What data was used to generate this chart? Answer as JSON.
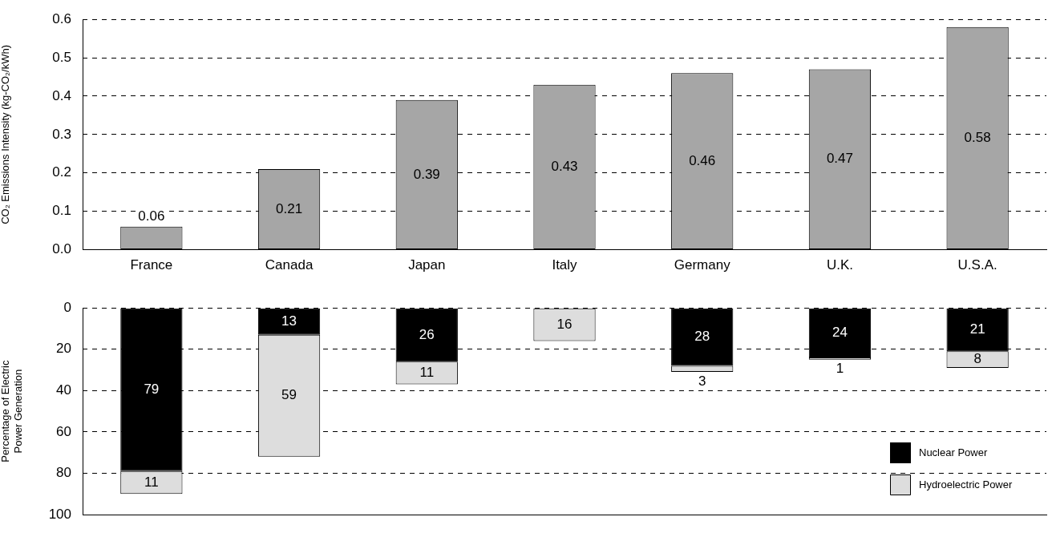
{
  "chart_data": [
    {
      "type": "bar",
      "ylabel": "CO₂ Emissions Intensity (kg-CO₂/kWh)",
      "categories": [
        "France",
        "Canada",
        "Japan",
        "Italy",
        "Germany",
        "U.K.",
        "U.S.A."
      ],
      "series": [
        {
          "color": "#a6a6a6",
          "values": [
            0.06,
            0.21,
            0.39,
            0.43,
            0.46,
            0.47,
            0.58
          ]
        }
      ],
      "ylim": [
        0,
        0.6
      ],
      "yticks": [
        {
          "value": 0,
          "label": "0.0"
        },
        0.1,
        0.2,
        0.3,
        0.4,
        0.5,
        0.6
      ],
      "grid": "y",
      "data_labels": true,
      "legend": false
    },
    {
      "type": "bar",
      "ylabel": "Percentage of Electric\nPower Generation",
      "categories": [
        null,
        null,
        null,
        null,
        null,
        null,
        null
      ],
      "stacked": true,
      "series": [
        {
          "name": "Nuclear Power",
          "color": "#000000",
          "values": [
            79,
            13,
            26,
            null,
            28,
            24,
            21
          ]
        },
        {
          "name": "Hydroelectric Power",
          "color": "#dddddd",
          "values": [
            11,
            59,
            11,
            16,
            3,
            1,
            8
          ]
        }
      ],
      "ylim": [
        100,
        0
      ],
      "yticks": [
        0,
        20,
        40,
        60,
        80,
        100
      ],
      "grid": "y",
      "data_labels": true,
      "legend": "bottom right",
      "tick_labels": "y"
    }
  ]
}
